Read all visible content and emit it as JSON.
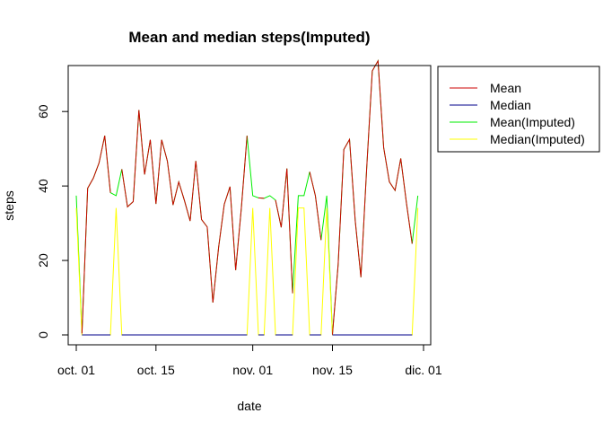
{
  "chart_data": {
    "type": "line",
    "title": "Mean and median steps(Imputed)",
    "xlabel": "date",
    "ylabel": "steps",
    "x": [
      "10-01",
      "10-02",
      "10-03",
      "10-04",
      "10-05",
      "10-06",
      "10-07",
      "10-08",
      "10-09",
      "10-10",
      "10-11",
      "10-12",
      "10-13",
      "10-14",
      "10-15",
      "10-16",
      "10-17",
      "10-18",
      "10-19",
      "10-20",
      "10-21",
      "10-22",
      "10-23",
      "10-24",
      "10-25",
      "10-26",
      "10-27",
      "10-28",
      "10-29",
      "10-30",
      "10-31",
      "11-01",
      "11-02",
      "11-03",
      "11-04",
      "11-05",
      "11-06",
      "11-07",
      "11-08",
      "11-09",
      "11-10",
      "11-11",
      "11-12",
      "11-13",
      "11-14",
      "11-15",
      "11-16",
      "11-17",
      "11-18",
      "11-19",
      "11-20",
      "11-21",
      "11-22",
      "11-23",
      "11-24",
      "11-25",
      "11-26",
      "11-27",
      "11-28",
      "11-29",
      "11-30"
    ],
    "x_ticks": [
      {
        "label": "oct. 01",
        "index": 0
      },
      {
        "label": "oct. 15",
        "index": 14
      },
      {
        "label": "nov. 01",
        "index": 31
      },
      {
        "label": "nov. 15",
        "index": 45
      },
      {
        "label": "dic. 01",
        "index": 61
      }
    ],
    "ylim": [
      0,
      75
    ],
    "xlim": [
      0,
      61
    ],
    "y_ticks": [
      0,
      20,
      40,
      60
    ],
    "legend_position": "top-right",
    "series": [
      {
        "name": "Mean",
        "color": "#cc0000",
        "values": [
          null,
          0.4,
          39.4,
          42.1,
          46.2,
          53.5,
          38.2,
          null,
          44.5,
          34.4,
          35.8,
          60.4,
          43.1,
          52.4,
          35.2,
          52.4,
          46.7,
          34.9,
          41.1,
          36.1,
          30.6,
          46.7,
          31.0,
          29.0,
          8.7,
          23.5,
          35.1,
          39.8,
          17.4,
          34.1,
          53.5,
          null,
          36.8,
          36.7,
          null,
          36.2,
          28.9,
          44.7,
          11.2,
          null,
          null,
          43.8,
          37.4,
          25.5,
          null,
          0.1,
          18.9,
          49.8,
          52.5,
          30.7,
          15.5,
          44.4,
          70.9,
          73.6,
          50.3,
          41.1,
          38.8,
          47.4,
          35.4,
          24.5,
          null
        ]
      },
      {
        "name": "Median",
        "color": "#00008b",
        "values": [
          null,
          0,
          0,
          0,
          0,
          0,
          0,
          null,
          0,
          0,
          0,
          0,
          0,
          0,
          0,
          0,
          0,
          0,
          0,
          0,
          0,
          0,
          0,
          0,
          0,
          0,
          0,
          0,
          0,
          0,
          0,
          null,
          0,
          0,
          null,
          0,
          0,
          0,
          0,
          null,
          null,
          0,
          0,
          0,
          null,
          0,
          0,
          0,
          0,
          0,
          0,
          0,
          0,
          0,
          0,
          0,
          0,
          0,
          0,
          0,
          null
        ]
      },
      {
        "name": "Mean(Imputed)",
        "color": "#00ee00",
        "values": [
          37.4,
          0.4,
          39.4,
          42.1,
          46.2,
          53.5,
          38.2,
          37.4,
          44.5,
          34.4,
          35.8,
          60.4,
          43.1,
          52.4,
          35.2,
          52.4,
          46.7,
          34.9,
          41.1,
          36.1,
          30.6,
          46.7,
          31.0,
          29.0,
          8.7,
          23.5,
          35.1,
          39.8,
          17.4,
          34.1,
          53.5,
          37.4,
          36.8,
          36.7,
          37.4,
          36.2,
          28.9,
          44.7,
          11.2,
          37.4,
          37.4,
          43.8,
          37.4,
          25.5,
          37.4,
          0.1,
          18.9,
          49.8,
          52.5,
          30.7,
          15.5,
          44.4,
          70.9,
          73.6,
          50.3,
          41.1,
          38.8,
          47.4,
          35.4,
          24.5,
          37.4
        ]
      },
      {
        "name": "Median(Imputed)",
        "color": "#ffff00",
        "values": [
          34.1,
          0,
          0,
          0,
          0,
          0,
          0,
          34.1,
          0,
          0,
          0,
          0,
          0,
          0,
          0,
          0,
          0,
          0,
          0,
          0,
          0,
          0,
          0,
          0,
          0,
          0,
          0,
          0,
          0,
          0,
          0,
          34.1,
          0,
          0,
          34.1,
          0,
          0,
          0,
          0,
          34.1,
          34.1,
          0,
          0,
          0,
          34.1,
          0,
          0,
          0,
          0,
          0,
          0,
          0,
          0,
          0,
          0,
          0,
          0,
          0,
          0,
          0,
          34.1
        ]
      }
    ]
  }
}
